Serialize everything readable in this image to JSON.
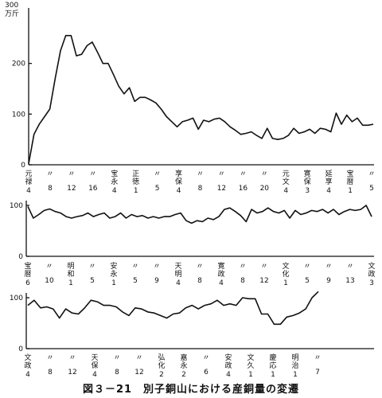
{
  "caption": "図３－21　別子銅山における産銅量の変遷",
  "chart_data": [
    {
      "type": "line",
      "ylabel_lines": [
        "300",
        "万斤"
      ],
      "ylim": [
        0,
        300
      ],
      "yticks": [
        0,
        100,
        200
      ],
      "x_tick_labels": [
        {
          "era": "元禄",
          "year": "4"
        },
        {
          "era": "〃",
          "year": "8"
        },
        {
          "era": "〃",
          "year": "12"
        },
        {
          "era": "〃",
          "year": "16"
        },
        {
          "era": "宝永",
          "year": "4"
        },
        {
          "era": "正徳",
          "year": "1"
        },
        {
          "era": "〃",
          "year": "5"
        },
        {
          "era": "享保",
          "year": "4"
        },
        {
          "era": "〃",
          "year": "8"
        },
        {
          "era": "〃",
          "year": "12"
        },
        {
          "era": "〃",
          "year": "16"
        },
        {
          "era": "〃",
          "year": "20"
        },
        {
          "era": "元文",
          "year": "4"
        },
        {
          "era": "寛保",
          "year": "3"
        },
        {
          "era": "延享",
          "year": "4"
        },
        {
          "era": "宝暦",
          "year": "1"
        },
        {
          "era": "〃",
          "year": "5"
        }
      ],
      "values": [
        2,
        60,
        80,
        95,
        110,
        170,
        225,
        255,
        255,
        215,
        218,
        235,
        242,
        222,
        200,
        200,
        178,
        155,
        140,
        152,
        125,
        133,
        133,
        128,
        122,
        110,
        95,
        85,
        75,
        85,
        88,
        92,
        70,
        88,
        85,
        90,
        92,
        85,
        75,
        68,
        60,
        62,
        65,
        58,
        52,
        72,
        52,
        50,
        52,
        58,
        72,
        62,
        65,
        70,
        62,
        72,
        70,
        65,
        102,
        80,
        98,
        85,
        92,
        78,
        78,
        80
      ]
    },
    {
      "type": "line",
      "ylim": [
        0,
        100
      ],
      "yticks": [
        0,
        100
      ],
      "x_tick_labels": [
        {
          "era": "宝暦",
          "year": "6"
        },
        {
          "era": "〃",
          "year": "10"
        },
        {
          "era": "明和",
          "year": "1"
        },
        {
          "era": "〃",
          "year": "5"
        },
        {
          "era": "安永",
          "year": "1"
        },
        {
          "era": "〃",
          "year": "5"
        },
        {
          "era": "〃",
          "year": "9"
        },
        {
          "era": "天明",
          "year": "4"
        },
        {
          "era": "〃",
          "year": "8"
        },
        {
          "era": "寛政",
          "year": "4"
        },
        {
          "era": "〃",
          "year": "8"
        },
        {
          "era": "〃",
          "year": "12"
        },
        {
          "era": "文化",
          "year": "1"
        },
        {
          "era": "〃",
          "year": "5"
        },
        {
          "era": "〃",
          "year": "9"
        },
        {
          "era": "〃",
          "year": "13"
        },
        {
          "era": "文政",
          "year": "3"
        }
      ],
      "values": [
        98,
        75,
        82,
        90,
        93,
        88,
        85,
        78,
        75,
        78,
        80,
        85,
        78,
        82,
        85,
        75,
        78,
        85,
        75,
        82,
        78,
        80,
        75,
        78,
        75,
        78,
        78,
        82,
        85,
        70,
        65,
        70,
        68,
        75,
        72,
        78,
        92,
        95,
        88,
        80,
        68,
        92,
        85,
        88,
        95,
        88,
        85,
        90,
        75,
        90,
        82,
        85,
        90,
        88,
        92,
        85,
        92,
        82,
        88,
        92,
        90,
        92,
        100,
        78
      ]
    },
    {
      "type": "line",
      "ylim": [
        0,
        100
      ],
      "yticks": [
        0,
        100
      ],
      "x_tick_labels": [
        {
          "era": "文政",
          "year": "4"
        },
        {
          "era": "〃",
          "year": "8"
        },
        {
          "era": "〃",
          "year": "12"
        },
        {
          "era": "天保",
          "year": "4"
        },
        {
          "era": "〃",
          "year": "8"
        },
        {
          "era": "〃",
          "year": "12"
        },
        {
          "era": "弘化",
          "year": "2"
        },
        {
          "era": "嘉永",
          "year": "2"
        },
        {
          "era": "〃",
          "year": "6"
        },
        {
          "era": "安政",
          "year": "4"
        },
        {
          "era": "文久",
          "year": "1"
        },
        {
          "era": "慶応",
          "year": "1"
        },
        {
          "era": "明治",
          "year": "1"
        },
        {
          "era": "〃",
          "year": "7"
        }
      ],
      "values": [
        85,
        95,
        80,
        82,
        78,
        60,
        78,
        70,
        68,
        80,
        95,
        92,
        85,
        85,
        82,
        72,
        65,
        80,
        78,
        72,
        70,
        65,
        60,
        68,
        70,
        80,
        85,
        78,
        85,
        88,
        95,
        85,
        88,
        85,
        100,
        98,
        98,
        68,
        68,
        48,
        48,
        62,
        65,
        70,
        78,
        100,
        112
      ]
    }
  ]
}
